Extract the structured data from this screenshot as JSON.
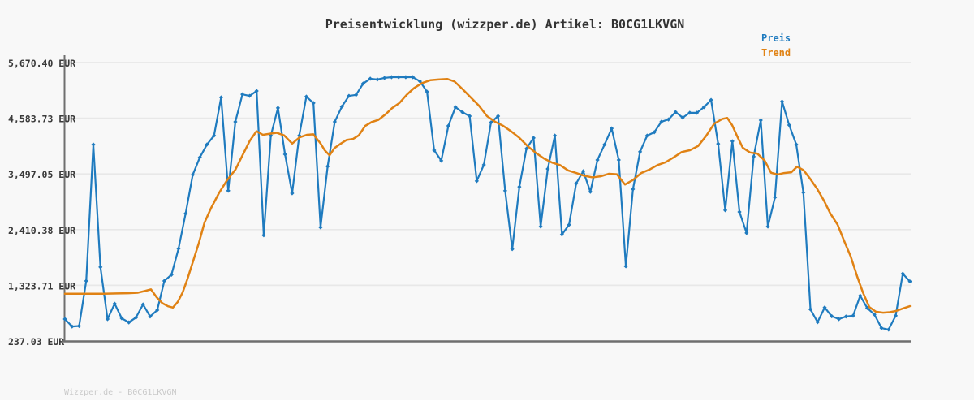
{
  "header": {
    "title": "Preisentwicklung (wizzper.de) Artikel: B0CG1LKVGN"
  },
  "legend": {
    "items": [
      {
        "label": "Preis",
        "color": "#1f7bbf"
      },
      {
        "label": "Trend",
        "color": "#e08214"
      }
    ]
  },
  "footer": {
    "text": "Wizzper.de - B0CG1LKVGN"
  },
  "colors": {
    "background": "#f8f8f8",
    "grid": "#e8e8e8",
    "axis": "#6f6f6f",
    "title": "#333333",
    "tick_label": "#3a3a3a",
    "price": "#1f7bbf",
    "trend": "#e08214",
    "watermark": "#c9c9c9"
  },
  "chart_data": {
    "type": "line",
    "title": "Preisentwicklung (wizzper.de) Artikel: B0CG1LKVGN",
    "xlabel": "",
    "ylabel": "EUR",
    "ylim": [
      237.03,
      5670.4
    ],
    "grid": "horizontal-only",
    "legend_position": "top-right",
    "x_axis": {
      "tick_labels_visible": false
    },
    "y_axis": {
      "min": 237.03,
      "max": 5670.4,
      "ticks": [
        {
          "label": "5,670.40 EUR",
          "value": 5670.4
        },
        {
          "label": "4,583.73 EUR",
          "value": 4583.73
        },
        {
          "label": "3,497.05 EUR",
          "value": 3497.05
        },
        {
          "label": "2,410.38 EUR",
          "value": 2410.38
        },
        {
          "label": "1,323.71 EUR",
          "value": 1323.71
        },
        {
          "label": "237.03 EUR",
          "value": 237.03
        }
      ]
    },
    "series": [
      {
        "name": "Preis",
        "color": "#1f7bbf",
        "marker": "diamond",
        "values": [
          665,
          520,
          530,
          1410,
          4070,
          1680,
          665,
          965,
          680,
          600,
          695,
          950,
          715,
          840,
          1410,
          1530,
          2040,
          2725,
          3480,
          3820,
          4070,
          4245,
          4990,
          3170,
          4515,
          5050,
          5020,
          5115,
          2300,
          4245,
          4785,
          3880,
          3120,
          4245,
          5005,
          4880,
          2455,
          3645,
          4515,
          4810,
          5020,
          5040,
          5260,
          5355,
          5340,
          5370,
          5385,
          5385,
          5385,
          5385,
          5305,
          5100,
          3960,
          3755,
          4435,
          4800,
          4700,
          4625,
          3360,
          3675,
          4500,
          4625,
          3170,
          2030,
          3245,
          3990,
          4200,
          2470,
          3595,
          4245,
          2315,
          2505,
          3310,
          3550,
          3150,
          3770,
          4070,
          4385,
          3770,
          1695,
          3200,
          3930,
          4245,
          4310,
          4515,
          4560,
          4705,
          4595,
          4690,
          4690,
          4800,
          4940,
          4085,
          2790,
          4135,
          2755,
          2345,
          3835,
          4545,
          2470,
          3040,
          4910,
          4450,
          4070,
          3135,
          855,
          605,
          890,
          720,
          665,
          715,
          730,
          1120,
          880,
          755,
          490,
          460,
          730,
          1550,
          1400
        ]
      },
      {
        "name": "Trend",
        "color": "#e08214",
        "marker": "none",
        "points": [
          [
            80,
            1160
          ],
          [
            96,
            1160
          ],
          [
            112,
            1160
          ],
          [
            128,
            1160
          ],
          [
            144,
            1165
          ],
          [
            158,
            1170
          ],
          [
            170,
            1180
          ],
          [
            179,
            1215
          ],
          [
            186,
            1245
          ],
          [
            193,
            1090
          ],
          [
            200,
            975
          ],
          [
            207,
            915
          ],
          [
            213,
            890
          ],
          [
            219,
            1000
          ],
          [
            225,
            1185
          ],
          [
            231,
            1450
          ],
          [
            238,
            1800
          ],
          [
            245,
            2150
          ],
          [
            252,
            2550
          ],
          [
            260,
            2830
          ],
          [
            270,
            3130
          ],
          [
            280,
            3380
          ],
          [
            290,
            3580
          ],
          [
            300,
            3900
          ],
          [
            308,
            4150
          ],
          [
            316,
            4330
          ],
          [
            324,
            4260
          ],
          [
            332,
            4280
          ],
          [
            341,
            4300
          ],
          [
            350,
            4250
          ],
          [
            360,
            4090
          ],
          [
            369,
            4210
          ],
          [
            378,
            4260
          ],
          [
            386,
            4270
          ],
          [
            395,
            4090
          ],
          [
            400,
            3960
          ],
          [
            406,
            3860
          ],
          [
            412,
            4000
          ],
          [
            420,
            4090
          ],
          [
            427,
            4160
          ],
          [
            435,
            4180
          ],
          [
            442,
            4250
          ],
          [
            450,
            4435
          ],
          [
            458,
            4510
          ],
          [
            466,
            4550
          ],
          [
            475,
            4660
          ],
          [
            483,
            4780
          ],
          [
            492,
            4880
          ],
          [
            501,
            5040
          ],
          [
            510,
            5170
          ],
          [
            520,
            5270
          ],
          [
            530,
            5325
          ],
          [
            540,
            5340
          ],
          [
            551,
            5350
          ],
          [
            560,
            5300
          ],
          [
            570,
            5150
          ],
          [
            580,
            4990
          ],
          [
            590,
            4830
          ],
          [
            600,
            4625
          ],
          [
            610,
            4515
          ],
          [
            620,
            4435
          ],
          [
            630,
            4325
          ],
          [
            640,
            4200
          ],
          [
            650,
            4040
          ],
          [
            660,
            3910
          ],
          [
            670,
            3800
          ],
          [
            680,
            3720
          ],
          [
            690,
            3670
          ],
          [
            700,
            3565
          ],
          [
            710,
            3515
          ],
          [
            720,
            3460
          ],
          [
            730,
            3430
          ],
          [
            740,
            3450
          ],
          [
            750,
            3500
          ],
          [
            760,
            3490
          ],
          [
            770,
            3290
          ],
          [
            780,
            3380
          ],
          [
            790,
            3515
          ],
          [
            800,
            3580
          ],
          [
            810,
            3670
          ],
          [
            820,
            3725
          ],
          [
            830,
            3820
          ],
          [
            840,
            3925
          ],
          [
            850,
            3960
          ],
          [
            860,
            4040
          ],
          [
            870,
            4240
          ],
          [
            880,
            4480
          ],
          [
            890,
            4570
          ],
          [
            896,
            4590
          ],
          [
            902,
            4450
          ],
          [
            908,
            4240
          ],
          [
            915,
            4010
          ],
          [
            924,
            3915
          ],
          [
            933,
            3895
          ],
          [
            942,
            3760
          ],
          [
            950,
            3520
          ],
          [
            958,
            3485
          ],
          [
            966,
            3515
          ],
          [
            975,
            3530
          ],
          [
            982,
            3640
          ],
          [
            990,
            3570
          ],
          [
            998,
            3405
          ],
          [
            1007,
            3200
          ],
          [
            1015,
            2980
          ],
          [
            1023,
            2725
          ],
          [
            1032,
            2505
          ],
          [
            1040,
            2190
          ],
          [
            1048,
            1890
          ],
          [
            1056,
            1500
          ],
          [
            1063,
            1190
          ],
          [
            1071,
            900
          ],
          [
            1079,
            810
          ],
          [
            1088,
            790
          ],
          [
            1096,
            800
          ],
          [
            1104,
            823
          ],
          [
            1112,
            870
          ],
          [
            1121,
            918
          ]
        ]
      }
    ]
  }
}
